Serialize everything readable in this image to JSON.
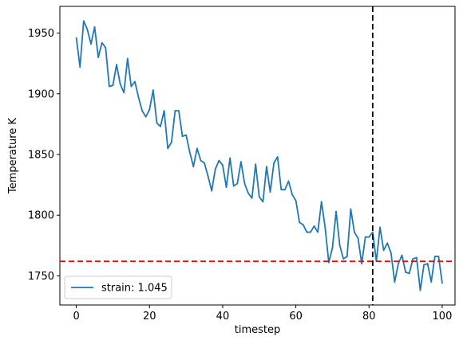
{
  "chart_data": {
    "type": "line",
    "xlabel": "timestep",
    "ylabel": "Temperature K",
    "xlim": [
      -4.5,
      103.5
    ],
    "ylim": [
      1726,
      1972
    ],
    "xticks": [
      0,
      20,
      40,
      60,
      80,
      100
    ],
    "yticks": [
      1750,
      1800,
      1850,
      1900,
      1950
    ],
    "grid": false,
    "legend_position": "lower left",
    "series": [
      {
        "name": "strain: 1.045",
        "color": "#1f77b4",
        "x": [
          0,
          1,
          2,
          3,
          4,
          5,
          6,
          7,
          8,
          9,
          10,
          11,
          12,
          13,
          14,
          15,
          16,
          17,
          18,
          19,
          20,
          21,
          22,
          23,
          24,
          25,
          26,
          27,
          28,
          29,
          30,
          31,
          32,
          33,
          34,
          35,
          36,
          37,
          38,
          39,
          40,
          41,
          42,
          43,
          44,
          45,
          46,
          47,
          48,
          49,
          50,
          51,
          52,
          53,
          54,
          55,
          56,
          57,
          58,
          59,
          60,
          61,
          62,
          63,
          64,
          65,
          66,
          67,
          68,
          69,
          70,
          71,
          72,
          73,
          74,
          75,
          76,
          77,
          78,
          79,
          80,
          81,
          82,
          83,
          84,
          85,
          86,
          87,
          88,
          89,
          90,
          91,
          92,
          93,
          94,
          95,
          96,
          97,
          98,
          99,
          100
        ],
        "values": [
          1946,
          1922,
          1960,
          1953,
          1941,
          1955,
          1930,
          1942,
          1938,
          1906,
          1907,
          1924,
          1908,
          1901,
          1929,
          1906,
          1910,
          1897,
          1886,
          1881,
          1887,
          1903,
          1876,
          1873,
          1886,
          1855,
          1860,
          1886,
          1886,
          1865,
          1866,
          1852,
          1840,
          1855,
          1845,
          1843,
          1832,
          1820,
          1838,
          1845,
          1841,
          1823,
          1847,
          1824,
          1826,
          1844,
          1826,
          1818,
          1814,
          1842,
          1815,
          1811,
          1840,
          1819,
          1843,
          1848,
          1821,
          1821,
          1828,
          1817,
          1812,
          1794,
          1792,
          1786,
          1786,
          1791,
          1786,
          1811,
          1790,
          1761,
          1773,
          1803,
          1775,
          1764,
          1766,
          1805,
          1786,
          1781,
          1760,
          1782,
          1782,
          1786,
          1762,
          1790,
          1771,
          1777,
          1769,
          1745,
          1760,
          1767,
          1753,
          1752,
          1764,
          1765,
          1738,
          1759,
          1760,
          1745,
          1766,
          1766,
          1744
        ]
      }
    ],
    "reference_lines": [
      {
        "orientation": "horizontal",
        "value": 1762,
        "color": "#ff0000",
        "style": "dashed"
      },
      {
        "orientation": "vertical",
        "value": 81,
        "color": "#000000",
        "style": "dashed"
      }
    ]
  }
}
